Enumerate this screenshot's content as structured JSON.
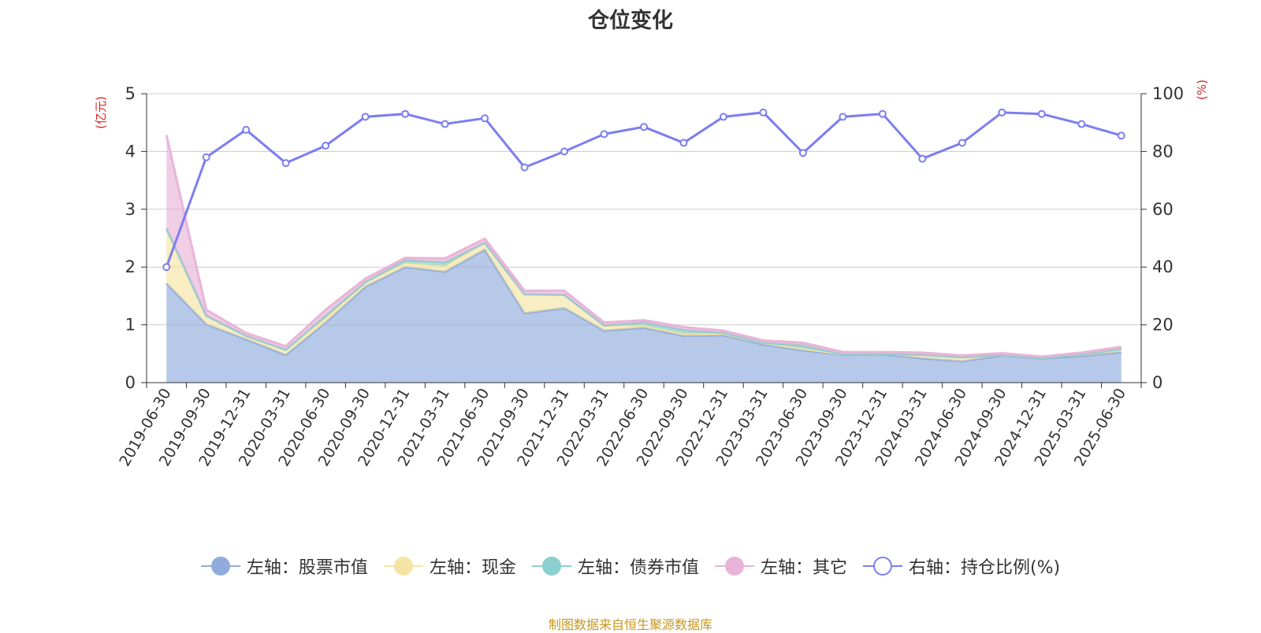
{
  "chart_data": {
    "type": "area",
    "title": "仓位变化",
    "left_axis_unit": "(亿元)",
    "right_axis_unit": "(%)",
    "ylim_left": [
      0,
      5
    ],
    "ylim_right": [
      0,
      100
    ],
    "left_ticks": [
      "0",
      "1",
      "2",
      "3",
      "4",
      "5"
    ],
    "right_ticks": [
      "0",
      "20",
      "40",
      "60",
      "80",
      "100"
    ],
    "grid": true,
    "legend_position": "bottom",
    "x": [
      "2019-06-30",
      "2019-09-30",
      "2019-12-31",
      "2020-03-31",
      "2020-06-30",
      "2020-09-30",
      "2020-12-31",
      "2021-03-31",
      "2021-06-30",
      "2021-09-30",
      "2021-12-31",
      "2022-03-31",
      "2022-06-30",
      "2022-09-30",
      "2022-12-31",
      "2023-03-31",
      "2023-06-30",
      "2023-09-30",
      "2023-12-31",
      "2024-03-31",
      "2024-06-30",
      "2024-09-30",
      "2024-12-31",
      "2025-03-31",
      "2025-06-30"
    ],
    "series": [
      {
        "name": "左轴：股票市值",
        "axis": "left",
        "kind": "stacked-area",
        "color": "#91acdc",
        "values": [
          1.72,
          1.01,
          0.75,
          0.48,
          1.04,
          1.66,
          2.0,
          1.92,
          2.3,
          1.2,
          1.29,
          0.9,
          0.95,
          0.81,
          0.82,
          0.66,
          0.56,
          0.48,
          0.49,
          0.42,
          0.37,
          0.47,
          0.42,
          0.46,
          0.53
        ]
      },
      {
        "name": "左轴：现金",
        "axis": "left",
        "kind": "stacked-area",
        "color": "#f5e4a3",
        "values": [
          0.95,
          0.15,
          0.06,
          0.09,
          0.08,
          0.08,
          0.07,
          0.1,
          0.12,
          0.33,
          0.23,
          0.09,
          0.04,
          0.04,
          0.03,
          0.03,
          0.03,
          0.01,
          0.01,
          0.06,
          0.07,
          0.01,
          0.01,
          0.03,
          0.05
        ]
      },
      {
        "name": "左轴：债券市值",
        "axis": "left",
        "kind": "stacked-area",
        "color": "#8ccfcf",
        "values": [
          0,
          0,
          0,
          0,
          0.04,
          0,
          0.05,
          0.06,
          0,
          0,
          0,
          0,
          0.05,
          0.06,
          0.01,
          0,
          0.05,
          0,
          0,
          0,
          0,
          0,
          0,
          0,
          0
        ]
      },
      {
        "name": "左轴：其它",
        "axis": "left",
        "kind": "stacked-area",
        "color": "#e8b4d8",
        "values": [
          1.61,
          0.1,
          0.05,
          0.06,
          0.1,
          0.06,
          0.04,
          0.07,
          0.07,
          0.06,
          0.07,
          0.05,
          0.04,
          0.05,
          0.04,
          0.04,
          0.05,
          0.04,
          0.03,
          0.04,
          0.03,
          0.03,
          0.02,
          0.03,
          0.04
        ]
      },
      {
        "name": "右轴：持仓比例(%)",
        "axis": "right",
        "kind": "line",
        "color": "#7b7ef0",
        "values": [
          40,
          78,
          87.5,
          76,
          82,
          92,
          93,
          89.5,
          91.5,
          74.5,
          80,
          86,
          88.5,
          83,
          92,
          93.5,
          79.5,
          92,
          93,
          77.5,
          83,
          93.5,
          93,
          89.5,
          85.5
        ]
      }
    ]
  },
  "source_note": "制图数据来自恒生聚源数据库"
}
